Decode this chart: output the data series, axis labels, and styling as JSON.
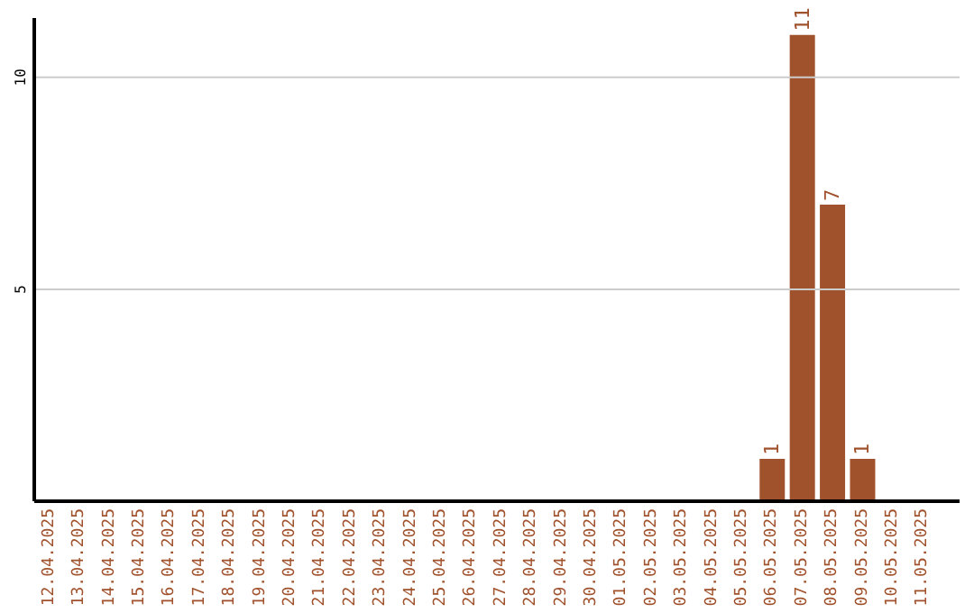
{
  "chart_data": {
    "type": "bar",
    "categories": [
      "12.04.2025",
      "13.04.2025",
      "14.04.2025",
      "15.04.2025",
      "16.04.2025",
      "17.04.2025",
      "18.04.2025",
      "19.04.2025",
      "20.04.2025",
      "21.04.2025",
      "22.04.2025",
      "23.04.2025",
      "24.04.2025",
      "25.04.2025",
      "26.04.2025",
      "27.04.2025",
      "28.04.2025",
      "29.04.2025",
      "30.04.2025",
      "01.05.2025",
      "02.05.2025",
      "03.05.2025",
      "04.05.2025",
      "05.05.2025",
      "06.05.2025",
      "07.05.2025",
      "08.05.2025",
      "09.05.2025",
      "10.05.2025",
      "11.05.2025"
    ],
    "values": [
      0,
      0,
      0,
      0,
      0,
      0,
      0,
      0,
      0,
      0,
      0,
      0,
      0,
      0,
      0,
      0,
      0,
      0,
      0,
      0,
      0,
      0,
      0,
      0,
      1,
      11,
      7,
      1,
      0,
      0
    ],
    "value_labels": [
      null,
      null,
      null,
      null,
      null,
      null,
      null,
      null,
      null,
      null,
      null,
      null,
      null,
      null,
      null,
      null,
      null,
      null,
      null,
      null,
      null,
      null,
      null,
      null,
      "1",
      "11",
      "7",
      "1",
      null,
      null
    ],
    "color": "#a0522d",
    "ylim": [
      0,
      11.4
    ],
    "yticks": [
      5,
      10
    ],
    "grid": "y"
  }
}
